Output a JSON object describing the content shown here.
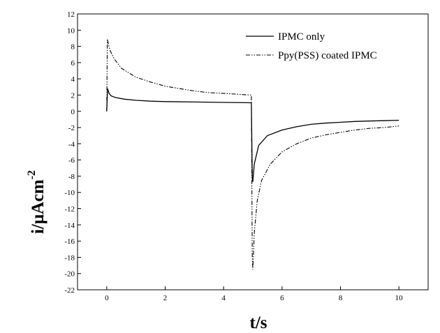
{
  "chart_data": {
    "type": "line",
    "xlabel": "t/s",
    "ylabel_main": "i/μAcm",
    "ylabel_exp": "-2",
    "xlim": [
      -1,
      11
    ],
    "ylim": [
      -22,
      12
    ],
    "x_ticks": [
      0,
      2,
      4,
      6,
      8,
      10
    ],
    "y_ticks": [
      12,
      10,
      8,
      6,
      4,
      2,
      0,
      -2,
      -4,
      -6,
      -8,
      -10,
      -12,
      -14,
      -16,
      -18,
      -20,
      -22
    ],
    "legend_position": "top-right",
    "grid": false,
    "series": [
      {
        "name": "IPMC only",
        "style": "solid",
        "points": [
          [
            0,
            0
          ],
          [
            0.03,
            2.8
          ],
          [
            0.08,
            2.2
          ],
          [
            0.15,
            1.9
          ],
          [
            0.3,
            1.7
          ],
          [
            0.6,
            1.5
          ],
          [
            1,
            1.35
          ],
          [
            1.5,
            1.25
          ],
          [
            2,
            1.2
          ],
          [
            3,
            1.15
          ],
          [
            4,
            1.1
          ],
          [
            4.95,
            1.05
          ],
          [
            4.98,
            -8.0
          ],
          [
            5.0,
            -8.7
          ],
          [
            5.05,
            -6.5
          ],
          [
            5.2,
            -4.2
          ],
          [
            5.5,
            -3.0
          ],
          [
            6,
            -2.3
          ],
          [
            6.5,
            -1.9
          ],
          [
            7,
            -1.6
          ],
          [
            7.5,
            -1.45
          ],
          [
            8,
            -1.35
          ],
          [
            8.5,
            -1.25
          ],
          [
            9,
            -1.2
          ],
          [
            9.5,
            -1.15
          ],
          [
            10,
            -1.1
          ]
        ]
      },
      {
        "name": "Ppy(PSS) coated IPMC",
        "style": "dashdot",
        "points": [
          [
            0,
            0
          ],
          [
            0.02,
            8.9
          ],
          [
            0.1,
            7.6
          ],
          [
            0.25,
            6.5
          ],
          [
            0.5,
            5.3
          ],
          [
            1,
            4.2
          ],
          [
            1.5,
            3.6
          ],
          [
            2,
            3.1
          ],
          [
            2.5,
            2.8
          ],
          [
            3,
            2.5
          ],
          [
            3.5,
            2.3
          ],
          [
            4,
            2.2
          ],
          [
            4.5,
            2.1
          ],
          [
            4.95,
            2.0
          ],
          [
            4.98,
            -18.0
          ],
          [
            5.0,
            -19.5
          ],
          [
            5.05,
            -15.0
          ],
          [
            5.15,
            -11.0
          ],
          [
            5.3,
            -8.5
          ],
          [
            5.6,
            -6.5
          ],
          [
            6,
            -5.0
          ],
          [
            6.5,
            -4.0
          ],
          [
            7,
            -3.3
          ],
          [
            7.5,
            -2.9
          ],
          [
            8,
            -2.6
          ],
          [
            8.5,
            -2.3
          ],
          [
            9,
            -2.1
          ],
          [
            9.5,
            -2.0
          ],
          [
            10,
            -1.8
          ]
        ]
      }
    ]
  }
}
